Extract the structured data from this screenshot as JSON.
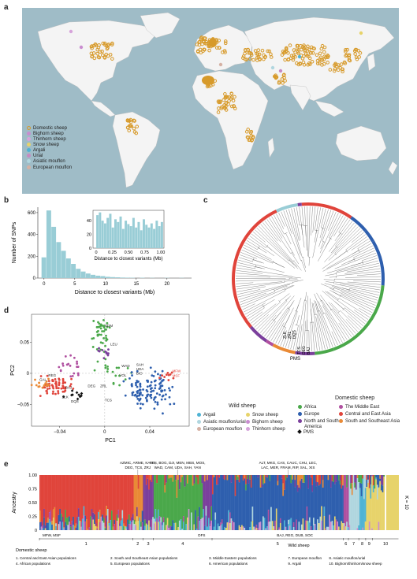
{
  "panel_labels": {
    "a": "a",
    "b": "b",
    "c": "c",
    "d": "d",
    "e": "e"
  },
  "map_legend": [
    {
      "label": "Domestic sheep",
      "color": "#d79a2a",
      "ring": true
    },
    {
      "label": "Bighorn sheep",
      "color": "#c98dd0",
      "ring": false
    },
    {
      "label": "Thinhorn sheep",
      "color": "#d6a3da",
      "ring": false
    },
    {
      "label": "Snow sheep",
      "color": "#e7d36a",
      "ring": false
    },
    {
      "label": "Argali",
      "color": "#4fb3d4",
      "ring": false
    },
    {
      "label": "Urial",
      "color": "#c78ac2",
      "ring": false
    },
    {
      "label": "Asiatic mouflon",
      "color": "#b0d6df",
      "ring": false
    },
    {
      "label": "European mouflon",
      "color": "#d5b1a4",
      "ring": false
    }
  ],
  "colors": {
    "ocean": "#9fbcc7",
    "land": "#f4f4f4",
    "teal": "#99cdd6",
    "domestic": "#d79a2a"
  },
  "chart_data": [
    {
      "type": "bar",
      "id": "b-main",
      "xlabel": "Distance to closest variants (Mb)",
      "ylabel": "Number of SNPs",
      "xticks": [
        "0",
        "5",
        "10",
        "15",
        "20"
      ],
      "yticks": [
        "0",
        "200",
        "400",
        "600"
      ],
      "xlim": [
        -1,
        24
      ],
      "ylim": [
        0,
        650
      ],
      "bin_width": 0.8,
      "x": [
        -0.4,
        0.4,
        1.2,
        2.0,
        2.8,
        3.6,
        4.4,
        5.2,
        6.0,
        6.8,
        7.6,
        8.4,
        9.2,
        10.0,
        10.8,
        11.6,
        12.4,
        13.2,
        14.0,
        15.6,
        17.2,
        19.6,
        22.0
      ],
      "values": [
        190,
        620,
        470,
        330,
        250,
        180,
        130,
        85,
        60,
        42,
        30,
        22,
        18,
        12,
        9,
        7,
        5,
        4,
        3,
        3,
        2,
        2,
        2
      ]
    },
    {
      "type": "bar",
      "id": "b-inset",
      "xlabel": "Distance to closest variants (Mb)",
      "xticks": [
        "0",
        "0.25",
        "0.50",
        "0.75",
        "1.00"
      ],
      "yticks": [
        "0",
        "20",
        "40"
      ],
      "xlim": [
        -0.05,
        1.05
      ],
      "ylim": [
        0,
        55
      ],
      "bin_width": 0.04,
      "x": [
        0.0,
        0.04,
        0.08,
        0.12,
        0.16,
        0.2,
        0.24,
        0.28,
        0.32,
        0.36,
        0.4,
        0.44,
        0.48,
        0.52,
        0.56,
        0.6,
        0.64,
        0.68,
        0.72,
        0.76,
        0.8,
        0.84,
        0.88,
        0.92,
        0.96,
        1.0
      ],
      "values": [
        48,
        52,
        40,
        36,
        44,
        50,
        30,
        42,
        38,
        46,
        28,
        40,
        35,
        32,
        44,
        30,
        38,
        26,
        42,
        34,
        30,
        36,
        28,
        40,
        32,
        38
      ]
    },
    {
      "type": "scatter",
      "id": "d-pca",
      "xlabel": "PC1",
      "ylabel": "PC2",
      "xticks": [
        "−0.04",
        "0",
        "0.04"
      ],
      "yticks": [
        "−0.05",
        "0",
        "0.05"
      ],
      "xlim": [
        -0.065,
        0.075
      ],
      "ylim": [
        -0.085,
        0.095
      ],
      "annotations": [
        "SOM",
        "LEU",
        "VOL",
        "REG",
        "GAL",
        "WAD",
        "ZRL",
        "DEG",
        "BAJ",
        "ZLK",
        "DQS",
        "TCS",
        "SAH",
        "UDA",
        "BIO",
        "MFW",
        "MSF"
      ],
      "series": [
        {
          "name": "Argali",
          "color": "#4fb3d4"
        },
        {
          "name": "Asiatic mouflon/urial",
          "color": "#b0d6df"
        },
        {
          "name": "European mouflon",
          "color": "#d5b1a4"
        },
        {
          "name": "Snow sheep",
          "color": "#e7d36a"
        },
        {
          "name": "Bighorn sheep",
          "color": "#c98dd0"
        },
        {
          "name": "Thinhorn sheep",
          "color": "#d6a3da"
        },
        {
          "name": "Africa",
          "color": "#4aa84a"
        },
        {
          "name": "Europe",
          "color": "#2e5fae"
        },
        {
          "name": "North and South America",
          "color": "#7b3f9c"
        },
        {
          "name": "PMS",
          "color": "#111111"
        },
        {
          "name": "The Middle East",
          "color": "#b050a0"
        },
        {
          "name": "Central and East Asia",
          "color": "#e0443b"
        },
        {
          "name": "South and Southeast Asia",
          "color": "#e98a36"
        }
      ]
    },
    {
      "type": "area",
      "id": "e-admixture",
      "ylabel": "Ancestry",
      "yticks": [
        "0",
        "0.25",
        "0.50",
        "0.75",
        "1.00"
      ],
      "ylim": [
        0,
        1
      ],
      "k_label": "K = 10",
      "series": [
        {
          "name": "1",
          "color": "#e0443b"
        },
        {
          "name": "2",
          "color": "#e98a36"
        },
        {
          "name": "3",
          "color": "#7b3f9c"
        },
        {
          "name": "4",
          "color": "#4aa84a"
        },
        {
          "name": "5",
          "color": "#2e5fae"
        },
        {
          "name": "6",
          "color": "#b050a0"
        },
        {
          "name": "7",
          "color": "#b0d6df"
        },
        {
          "name": "8",
          "color": "#4fb3d4"
        },
        {
          "name": "9",
          "color": "#e7d36a"
        },
        {
          "name": "10",
          "color": "#c98dd0"
        }
      ]
    }
  ],
  "tree": {
    "labels": [
      "PMS",
      "ZLK",
      "ZRL",
      "DQS",
      "TCS",
      "DEG",
      "BAJ"
    ]
  },
  "pca_legend": {
    "wild_title": "Wild sheep",
    "domestic_title": "Domestic sheep",
    "wild": [
      {
        "label": "Argali",
        "color": "#4fb3d4"
      },
      {
        "label": "Snow sheep",
        "color": "#e7d36a"
      },
      {
        "label": "Asiatic mouflon/urial",
        "color": "#b0d6df"
      },
      {
        "label": "Bighorn sheep",
        "color": "#c98dd0"
      },
      {
        "label": "European mouflon",
        "color": "#d5b1a4"
      },
      {
        "label": "Thinhorn sheep",
        "color": "#d6a3da"
      }
    ],
    "domestic": [
      {
        "label": "Africa",
        "color": "#4aa84a"
      },
      {
        "label": "The Middle East",
        "color": "#b050a0"
      },
      {
        "label": "Europe",
        "color": "#2e5fae"
      },
      {
        "label": "Central and East Asia",
        "color": "#e0443b"
      },
      {
        "label": "North and South America",
        "color": "#7b3f9c"
      },
      {
        "label": "South and Southeast Asia",
        "color": "#e98a36"
      },
      {
        "label": "PMS",
        "color": "#111111",
        "diamond": true
      }
    ]
  },
  "admix": {
    "top_labels": [
      "AZMIC, ARME, KATO,\nDEG, TCS, ZRJ",
      "AFS, BOG, DJI, MEN, MBS, MOS,\nWAD, CAM, UDA, SAH, YAN",
      "ALT, MKG, CAS, CAUC, CHU, LEC,\nLAC, MER, FRAM, RIP, SAL, XIS"
    ],
    "bottom_labels": [
      "MFW, MSF",
      "DFS",
      "BAJ, REG, DUB, SOC"
    ],
    "group_numbers": [
      "1",
      "2",
      "3",
      "4",
      "5",
      "6",
      "7",
      "8",
      "9",
      "10"
    ],
    "domestic_title": "Domestic sheep",
    "wild_title": "Wild sheep",
    "domestic_items": [
      "1. Central and East Asian populations",
      "2. South and Southeast Asian populations",
      "3. Middle Eastern populations",
      "4. African populations",
      "5. European populations",
      "6. American populations"
    ],
    "wild_items": [
      "7. European mouflon",
      "8. Asiatic mouflon/urial",
      "9. Argali",
      "10. Bighorn/thinhorn/snow sheep"
    ]
  }
}
